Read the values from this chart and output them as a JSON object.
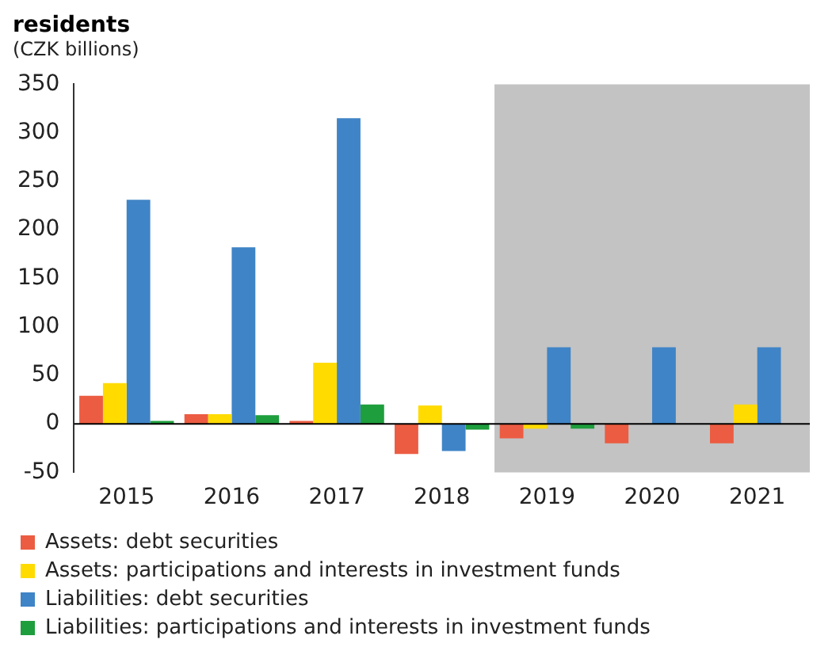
{
  "chart_data": {
    "type": "bar",
    "title": "residents",
    "subtitle": "(CZK billions)",
    "categories": [
      "2015",
      "2016",
      "2017",
      "2018",
      "2019",
      "2020",
      "2021"
    ],
    "series": [
      {
        "name": "Assets: debt securities",
        "color": "#ec5c42",
        "values": [
          29,
          10,
          3,
          -31,
          -15,
          -20,
          -20
        ]
      },
      {
        "name": "Assets: participations and interests in investment funds",
        "color": "#ffdb00",
        "values": [
          42,
          10,
          63,
          19,
          -5,
          0,
          20
        ]
      },
      {
        "name": "Liabilities: debt securities",
        "color": "#3f84c6",
        "values": [
          231,
          182,
          315,
          -28,
          79,
          79,
          79
        ]
      },
      {
        "name": "Liabilities: participations and interests in investment funds",
        "color": "#1e9e3c",
        "values": [
          3,
          9,
          20,
          -6,
          -5,
          0,
          0
        ]
      }
    ],
    "ylim": [
      -50,
      350
    ],
    "yticks": [
      -50,
      0,
      50,
      100,
      150,
      200,
      250,
      300,
      350
    ],
    "legend": "bottom",
    "bands": [
      {
        "axis": "x",
        "from": "2019",
        "to": "2021",
        "color": "#c3c3c3"
      }
    ]
  }
}
